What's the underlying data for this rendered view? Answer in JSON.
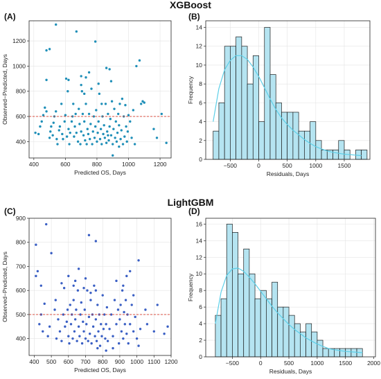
{
  "sections": {
    "top_title": "XGBoost",
    "bottom_title": "LightGBM"
  },
  "panels": {
    "A": "(A)",
    "B": "(B)",
    "C": "(C)",
    "D": "(D)"
  },
  "colors": {
    "xgb_points": "#1f8fb8",
    "lgbm_points": "#3a5fc4",
    "ref_line": "#d93b2b",
    "hist_fill": "#b5e4f1",
    "hist_edge": "#1a1a1a",
    "kde": "#5ccfe8"
  },
  "chart_data": [
    {
      "panel": "A",
      "type": "scatter",
      "xlabel": "Predicted OS, Days",
      "ylabel": "Observed−Predicted, Days",
      "xlim": [
        370,
        1270
      ],
      "ylim": [
        270,
        1360
      ],
      "xticks": [
        400,
        600,
        800,
        1000,
        1200
      ],
      "yticks": [
        400,
        600,
        800,
        1000,
        1200
      ],
      "hline": 600,
      "points": [
        [
          540,
          1330
        ],
        [
          670,
          1275
        ],
        [
          790,
          1195
        ],
        [
          500,
          1135
        ],
        [
          480,
          1125
        ],
        [
          860,
          985
        ],
        [
          880,
          975
        ],
        [
          1070,
          1045
        ],
        [
          1050,
          1000
        ],
        [
          620,
          890
        ],
        [
          700,
          920
        ],
        [
          730,
          910
        ],
        [
          750,
          950
        ],
        [
          810,
          860
        ],
        [
          890,
          880
        ],
        [
          1090,
          720
        ],
        [
          1210,
          620
        ],
        [
          1240,
          390
        ],
        [
          410,
          470
        ],
        [
          430,
          460
        ],
        [
          440,
          520
        ],
        [
          450,
          560
        ],
        [
          460,
          610
        ],
        [
          470,
          670
        ],
        [
          480,
          890
        ],
        [
          500,
          430
        ],
        [
          505,
          480
        ],
        [
          510,
          520
        ],
        [
          520,
          450
        ],
        [
          525,
          550
        ],
        [
          530,
          600
        ],
        [
          540,
          640
        ],
        [
          545,
          420
        ],
        [
          550,
          380
        ],
        [
          560,
          490
        ],
        [
          565,
          520
        ],
        [
          575,
          700
        ],
        [
          580,
          460
        ],
        [
          585,
          420
        ],
        [
          595,
          560
        ],
        [
          600,
          610
        ],
        [
          605,
          900
        ],
        [
          610,
          440
        ],
        [
          615,
          800
        ],
        [
          620,
          500
        ],
        [
          625,
          380
        ],
        [
          630,
          470
        ],
        [
          640,
          560
        ],
        [
          645,
          600
        ],
        [
          650,
          700
        ],
        [
          655,
          440
        ],
        [
          660,
          520
        ],
        [
          665,
          620
        ],
        [
          670,
          470
        ],
        [
          680,
          400
        ],
        [
          685,
          660
        ],
        [
          690,
          540
        ],
        [
          695,
          380
        ],
        [
          700,
          480
        ],
        [
          705,
          800
        ],
        [
          710,
          620
        ],
        [
          715,
          450
        ],
        [
          720,
          560
        ],
        [
          725,
          410
        ],
        [
          730,
          700
        ],
        [
          735,
          380
        ],
        [
          740,
          500
        ],
        [
          745,
          460
        ],
        [
          750,
          620
        ],
        [
          755,
          420
        ],
        [
          760,
          540
        ],
        [
          765,
          820
        ],
        [
          770,
          380
        ],
        [
          775,
          480
        ],
        [
          780,
          600
        ],
        [
          785,
          430
        ],
        [
          790,
          520
        ],
        [
          795,
          650
        ],
        [
          800,
          400
        ],
        [
          805,
          470
        ],
        [
          810,
          560
        ],
        [
          815,
          780
        ],
        [
          820,
          420
        ],
        [
          825,
          500
        ],
        [
          830,
          380
        ],
        [
          835,
          600
        ],
        [
          840,
          460
        ],
        [
          845,
          530
        ],
        [
          850,
          430
        ],
        [
          855,
          700
        ],
        [
          860,
          390
        ],
        [
          865,
          480
        ],
        [
          870,
          620
        ],
        [
          875,
          410
        ],
        [
          880,
          520
        ],
        [
          885,
          580
        ],
        [
          890,
          450
        ],
        [
          895,
          720
        ],
        [
          900,
          380
        ],
        [
          905,
          500
        ],
        [
          910,
          660
        ],
        [
          915,
          430
        ],
        [
          920,
          560
        ],
        [
          925,
          400
        ],
        [
          930,
          470
        ],
        [
          935,
          620
        ],
        [
          940,
          530
        ],
        [
          945,
          700
        ],
        [
          950,
          420
        ],
        [
          955,
          490
        ],
        [
          960,
          740
        ],
        [
          965,
          380
        ],
        [
          970,
          600
        ],
        [
          975,
          440
        ],
        [
          980,
          690
        ],
        [
          985,
          520
        ],
        [
          990,
          400
        ],
        [
          995,
          480
        ],
        [
          1000,
          610
        ],
        [
          1010,
          560
        ],
        [
          1020,
          430
        ],
        [
          1030,
          650
        ],
        [
          1040,
          380
        ],
        [
          1080,
          700
        ],
        [
          1100,
          710
        ],
        [
          1160,
          500
        ],
        [
          480,
          640
        ],
        [
          700,
          850
        ],
        [
          720,
          780
        ],
        [
          830,
          700
        ],
        [
          870,
          450
        ],
        [
          900,
          290
        ],
        [
          940,
          360
        ],
        [
          1180,
          430
        ]
      ]
    },
    {
      "panel": "B",
      "type": "bar",
      "xlabel": "Residuals, Days",
      "ylabel": "Frequency",
      "xlim": [
        -930,
        1950
      ],
      "ylim": [
        0,
        14.7
      ],
      "xticks": [
        -500,
        0,
        500,
        1000,
        1500
      ],
      "xtick_labels": [
        "−500",
        "0",
        "500",
        "1000",
        "1500"
      ],
      "yticks": [
        0,
        2,
        4,
        6,
        8,
        10,
        12,
        14
      ],
      "bin_start": -800,
      "bin_width": 100,
      "values": [
        3,
        6,
        12,
        12,
        13,
        12,
        8,
        11,
        4,
        14,
        9,
        6,
        5,
        5,
        5,
        3,
        3,
        4,
        2,
        1,
        1,
        1,
        2,
        1,
        0,
        1,
        1
      ],
      "kde": [
        [
          -800,
          4
        ],
        [
          -700,
          7.5
        ],
        [
          -600,
          9.5
        ],
        [
          -500,
          10.5
        ],
        [
          -400,
          11
        ],
        [
          -300,
          11
        ],
        [
          -200,
          10.6
        ],
        [
          -100,
          9.8
        ],
        [
          0,
          8.8
        ],
        [
          100,
          7.6
        ],
        [
          200,
          6.4
        ],
        [
          300,
          5.3
        ],
        [
          400,
          4.4
        ],
        [
          500,
          3.7
        ],
        [
          600,
          3.1
        ],
        [
          700,
          2.6
        ],
        [
          800,
          2.1
        ],
        [
          900,
          1.7
        ],
        [
          1000,
          1.35
        ],
        [
          1100,
          1.1
        ],
        [
          1200,
          0.9
        ],
        [
          1300,
          0.75
        ],
        [
          1400,
          0.65
        ],
        [
          1500,
          0.55
        ],
        [
          1600,
          0.5
        ],
        [
          1700,
          0.45
        ],
        [
          1800,
          0.4
        ]
      ]
    },
    {
      "panel": "C",
      "type": "scatter",
      "xlabel": "Predicted OS, Days",
      "ylabel": "Observed−Predicted, Days",
      "xlim": [
        370,
        1200
      ],
      "ylim": [
        330,
        900
      ],
      "xticks": [
        400,
        500,
        600,
        700,
        800,
        900,
        1000,
        1100,
        1200
      ],
      "yticks": [
        400,
        500,
        600,
        700,
        800,
        900
      ],
      "hline": 500,
      "points": [
        [
          470,
          875
        ],
        [
          410,
          790
        ],
        [
          720,
          830
        ],
        [
          760,
          805
        ],
        [
          420,
          680
        ],
        [
          500,
          755
        ],
        [
          410,
          660
        ],
        [
          440,
          620
        ],
        [
          960,
          680
        ],
        [
          1010,
          725
        ],
        [
          940,
          660
        ],
        [
          630,
          620
        ],
        [
          660,
          690
        ],
        [
          880,
          640
        ],
        [
          690,
          610
        ],
        [
          460,
          545
        ],
        [
          430,
          460
        ],
        [
          440,
          500
        ],
        [
          450,
          430
        ],
        [
          480,
          410
        ],
        [
          490,
          450
        ],
        [
          520,
          520
        ],
        [
          525,
          560
        ],
        [
          530,
          400
        ],
        [
          540,
          480
        ],
        [
          550,
          430
        ],
        [
          560,
          390
        ],
        [
          570,
          500
        ],
        [
          575,
          610
        ],
        [
          580,
          450
        ],
        [
          590,
          470
        ],
        [
          595,
          520
        ],
        [
          600,
          410
        ],
        [
          605,
          380
        ],
        [
          610,
          540
        ],
        [
          615,
          460
        ],
        [
          620,
          500
        ],
        [
          625,
          400
        ],
        [
          630,
          560
        ],
        [
          635,
          430
        ],
        [
          640,
          480
        ],
        [
          645,
          520
        ],
        [
          650,
          390
        ],
        [
          655,
          600
        ],
        [
          660,
          450
        ],
        [
          665,
          410
        ],
        [
          670,
          500
        ],
        [
          675,
          550
        ],
        [
          680,
          380
        ],
        [
          685,
          470
        ],
        [
          690,
          430
        ],
        [
          695,
          520
        ],
        [
          700,
          400
        ],
        [
          705,
          460
        ],
        [
          710,
          600
        ],
        [
          715,
          390
        ],
        [
          720,
          490
        ],
        [
          725,
          420
        ],
        [
          730,
          560
        ],
        [
          735,
          380
        ],
        [
          740,
          500
        ],
        [
          745,
          450
        ],
        [
          750,
          620
        ],
        [
          755,
          410
        ],
        [
          760,
          480
        ],
        [
          765,
          390
        ],
        [
          770,
          540
        ],
        [
          775,
          430
        ],
        [
          780,
          500
        ],
        [
          785,
          370
        ],
        [
          790,
          460
        ],
        [
          795,
          410
        ],
        [
          800,
          580
        ],
        [
          805,
          440
        ],
        [
          810,
          500
        ],
        [
          815,
          400
        ],
        [
          820,
          460
        ],
        [
          825,
          530
        ],
        [
          830,
          390
        ],
        [
          840,
          440
        ],
        [
          850,
          500
        ],
        [
          860,
          410
        ],
        [
          870,
          560
        ],
        [
          880,
          460
        ],
        [
          890,
          520
        ],
        [
          895,
          380
        ],
        [
          900,
          480
        ],
        [
          905,
          540
        ],
        [
          910,
          430
        ],
        [
          915,
          600
        ],
        [
          920,
          400
        ],
        [
          925,
          510
        ],
        [
          930,
          460
        ],
        [
          935,
          560
        ],
        [
          940,
          420
        ],
        [
          945,
          500
        ],
        [
          950,
          380
        ],
        [
          960,
          460
        ],
        [
          970,
          540
        ],
        [
          980,
          430
        ],
        [
          990,
          490
        ],
        [
          1000,
          400
        ],
        [
          1010,
          370
        ],
        [
          1020,
          440
        ],
        [
          1050,
          520
        ],
        [
          1060,
          460
        ],
        [
          1100,
          430
        ],
        [
          1120,
          540
        ],
        [
          1160,
          420
        ],
        [
          1180,
          450
        ],
        [
          600,
          660
        ],
        [
          640,
          640
        ],
        [
          700,
          650
        ],
        [
          730,
          590
        ],
        [
          760,
          600
        ],
        [
          560,
          630
        ],
        [
          920,
          620
        ],
        [
          980,
          580
        ],
        [
          770,
          360
        ],
        [
          820,
          350
        ],
        [
          860,
          360
        ]
      ]
    },
    {
      "panel": "D",
      "type": "bar",
      "xlabel": "Residuals, Days",
      "ylabel": "Frequency",
      "xlim": [
        -970,
        2030
      ],
      "ylim": [
        0,
        16.7
      ],
      "xticks": [
        -500,
        0,
        500,
        1000,
        1500,
        2000
      ],
      "xtick_labels": [
        "−500",
        "0",
        "500",
        "1000",
        "1500",
        "2000"
      ],
      "yticks": [
        0,
        2,
        4,
        6,
        8,
        10,
        12,
        14,
        16
      ],
      "bin_start": -800,
      "bin_width": 100,
      "values": [
        5,
        7,
        16,
        15,
        10,
        13,
        10,
        7,
        8,
        7,
        9,
        6,
        6,
        5,
        4,
        3,
        4,
        3,
        2,
        1,
        1,
        1,
        1,
        1,
        1,
        1
      ],
      "kde": [
        [
          -800,
          4
        ],
        [
          -700,
          7.8
        ],
        [
          -600,
          9.8
        ],
        [
          -500,
          10.6
        ],
        [
          -400,
          10.7
        ],
        [
          -300,
          10.3
        ],
        [
          -200,
          9.6
        ],
        [
          -100,
          8.8
        ],
        [
          0,
          7.9
        ],
        [
          100,
          7.0
        ],
        [
          200,
          6.1
        ],
        [
          300,
          5.3
        ],
        [
          400,
          4.6
        ],
        [
          500,
          3.9
        ],
        [
          600,
          3.3
        ],
        [
          700,
          2.8
        ],
        [
          800,
          2.3
        ],
        [
          900,
          1.9
        ],
        [
          1000,
          1.55
        ],
        [
          1100,
          1.25
        ],
        [
          1200,
          1.0
        ],
        [
          1300,
          0.85
        ],
        [
          1400,
          0.75
        ],
        [
          1500,
          0.65
        ],
        [
          1600,
          0.6
        ],
        [
          1700,
          0.55
        ],
        [
          1800,
          0.5
        ]
      ]
    }
  ]
}
